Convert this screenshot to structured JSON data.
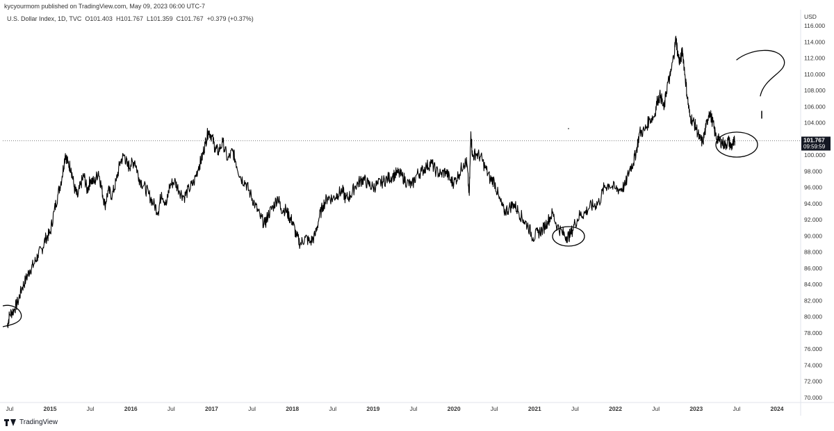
{
  "header": {
    "published_by": "kycyourmom published on TradingView.com, May 09, 2023 06:00 UTC-7"
  },
  "legend": {
    "symbol": "U.S. Dollar Index, 1D, TVC",
    "open_label": "O",
    "open": "101.403",
    "high_label": "H",
    "high": "101.767",
    "low_label": "L",
    "low": "101.359",
    "close_label": "C",
    "close": "101.767",
    "change": "+0.379 (+0.37%)"
  },
  "price_axis": {
    "unit": "USD",
    "last_price": "101.767",
    "countdown": "09:59:59"
  },
  "footer": {
    "brand": "TradingView"
  },
  "chart_data": {
    "type": "line",
    "title": "U.S. Dollar Index, 1D, TVC",
    "xlabel": "",
    "ylabel": "USD",
    "ylim": [
      70,
      116
    ],
    "xlim": [
      2014.5,
      2024.25
    ],
    "grid": false,
    "y_ticks": [
      "70.000",
      "72.000",
      "74.000",
      "76.000",
      "78.000",
      "80.000",
      "82.000",
      "84.000",
      "86.000",
      "88.000",
      "90.000",
      "92.000",
      "94.000",
      "96.000",
      "98.000",
      "100.000",
      "102.000",
      "104.000",
      "106.000",
      "108.000",
      "110.000",
      "112.000",
      "114.000",
      "116.000"
    ],
    "x_ticks": [
      {
        "label": "Jul",
        "x": 2014.5
      },
      {
        "label": "2015",
        "x": 2015.0,
        "year": true
      },
      {
        "label": "Jul",
        "x": 2015.5
      },
      {
        "label": "2016",
        "x": 2016.0,
        "year": true
      },
      {
        "label": "Jul",
        "x": 2016.5
      },
      {
        "label": "2017",
        "x": 2017.0,
        "year": true
      },
      {
        "label": "Jul",
        "x": 2017.5
      },
      {
        "label": "2018",
        "x": 2018.0,
        "year": true
      },
      {
        "label": "Jul",
        "x": 2018.5
      },
      {
        "label": "2019",
        "x": 2019.0,
        "year": true
      },
      {
        "label": "Jul",
        "x": 2019.5
      },
      {
        "label": "2020",
        "x": 2020.0,
        "year": true
      },
      {
        "label": "Jul",
        "x": 2020.5
      },
      {
        "label": "2021",
        "x": 2021.0,
        "year": true
      },
      {
        "label": "Jul",
        "x": 2021.5
      },
      {
        "label": "2022",
        "x": 2022.0,
        "year": true
      },
      {
        "label": "Jul",
        "x": 2022.5
      },
      {
        "label": "2023",
        "x": 2023.0,
        "year": true
      },
      {
        "label": "Jul",
        "x": 2023.5
      },
      {
        "label": "2024",
        "x": 2024.0,
        "year": true
      }
    ],
    "last_value": 101.767,
    "series": [
      {
        "color": "#000000",
        "points": [
          [
            2014.47,
            78.8
          ],
          [
            2014.5,
            80.3
          ],
          [
            2014.55,
            80.8
          ],
          [
            2014.6,
            81.8
          ],
          [
            2014.65,
            83.5
          ],
          [
            2014.7,
            84.6
          ],
          [
            2014.75,
            85.8
          ],
          [
            2014.8,
            86.5
          ],
          [
            2014.85,
            87.6
          ],
          [
            2014.9,
            88.4
          ],
          [
            2014.95,
            89.8
          ],
          [
            2015.0,
            90.3
          ],
          [
            2015.05,
            93.0
          ],
          [
            2015.1,
            95.2
          ],
          [
            2015.15,
            97.4
          ],
          [
            2015.19,
            100.2
          ],
          [
            2015.22,
            99.0
          ],
          [
            2015.26,
            98.4
          ],
          [
            2015.3,
            96.0
          ],
          [
            2015.34,
            94.8
          ],
          [
            2015.38,
            96.4
          ],
          [
            2015.42,
            97.5
          ],
          [
            2015.46,
            95.6
          ],
          [
            2015.5,
            97.0
          ],
          [
            2015.55,
            96.6
          ],
          [
            2015.6,
            98.0
          ],
          [
            2015.64,
            95.8
          ],
          [
            2015.68,
            93.8
          ],
          [
            2015.72,
            95.6
          ],
          [
            2015.77,
            95.0
          ],
          [
            2015.82,
            96.8
          ],
          [
            2015.87,
            99.2
          ],
          [
            2015.92,
            100.0
          ],
          [
            2015.96,
            98.6
          ],
          [
            2016.0,
            98.8
          ],
          [
            2016.05,
            99.3
          ],
          [
            2016.1,
            97.2
          ],
          [
            2016.16,
            96.2
          ],
          [
            2016.22,
            95.2
          ],
          [
            2016.28,
            94.0
          ],
          [
            2016.34,
            93.0
          ],
          [
            2016.38,
            95.4
          ],
          [
            2016.44,
            93.8
          ],
          [
            2016.48,
            96.2
          ],
          [
            2016.54,
            96.8
          ],
          [
            2016.6,
            95.6
          ],
          [
            2016.66,
            94.8
          ],
          [
            2016.72,
            95.8
          ],
          [
            2016.78,
            96.6
          ],
          [
            2016.84,
            98.6
          ],
          [
            2016.88,
            99.6
          ],
          [
            2016.92,
            101.4
          ],
          [
            2016.96,
            103.0
          ],
          [
            2017.0,
            102.4
          ],
          [
            2017.04,
            101.0
          ],
          [
            2017.08,
            100.4
          ],
          [
            2017.14,
            101.6
          ],
          [
            2017.2,
            99.4
          ],
          [
            2017.26,
            100.5
          ],
          [
            2017.3,
            99.2
          ],
          [
            2017.36,
            97.2
          ],
          [
            2017.42,
            96.6
          ],
          [
            2017.48,
            95.2
          ],
          [
            2017.54,
            93.8
          ],
          [
            2017.6,
            92.4
          ],
          [
            2017.66,
            91.4
          ],
          [
            2017.7,
            92.6
          ],
          [
            2017.76,
            93.6
          ],
          [
            2017.82,
            94.8
          ],
          [
            2017.86,
            93.4
          ],
          [
            2017.92,
            93.2
          ],
          [
            2017.96,
            92.4
          ],
          [
            2018.0,
            91.8
          ],
          [
            2018.05,
            90.0
          ],
          [
            2018.1,
            89.0
          ],
          [
            2018.16,
            89.8
          ],
          [
            2018.22,
            89.2
          ],
          [
            2018.28,
            90.0
          ],
          [
            2018.33,
            92.2
          ],
          [
            2018.38,
            93.8
          ],
          [
            2018.44,
            94.8
          ],
          [
            2018.5,
            94.6
          ],
          [
            2018.56,
            95.2
          ],
          [
            2018.62,
            95.6
          ],
          [
            2018.66,
            94.6
          ],
          [
            2018.72,
            95.0
          ],
          [
            2018.78,
            96.2
          ],
          [
            2018.84,
            96.8
          ],
          [
            2018.88,
            97.0
          ],
          [
            2018.94,
            96.4
          ],
          [
            2019.0,
            96.0
          ],
          [
            2019.06,
            96.4
          ],
          [
            2019.12,
            96.7
          ],
          [
            2019.18,
            97.1
          ],
          [
            2019.24,
            97.4
          ],
          [
            2019.3,
            97.8
          ],
          [
            2019.36,
            97.4
          ],
          [
            2019.42,
            96.6
          ],
          [
            2019.48,
            96.2
          ],
          [
            2019.54,
            97.6
          ],
          [
            2019.6,
            98.0
          ],
          [
            2019.66,
            98.6
          ],
          [
            2019.72,
            99.0
          ],
          [
            2019.78,
            98.0
          ],
          [
            2019.84,
            97.6
          ],
          [
            2019.9,
            98.0
          ],
          [
            2019.96,
            96.8
          ],
          [
            2020.0,
            96.6
          ],
          [
            2020.06,
            97.6
          ],
          [
            2020.12,
            99.0
          ],
          [
            2020.16,
            99.0
          ],
          [
            2020.19,
            95.0
          ],
          [
            2020.21,
            102.9
          ],
          [
            2020.23,
            99.8
          ],
          [
            2020.27,
            100.2
          ],
          [
            2020.33,
            99.8
          ],
          [
            2020.39,
            98.4
          ],
          [
            2020.45,
            97.0
          ],
          [
            2020.5,
            96.8
          ],
          [
            2020.56,
            94.6
          ],
          [
            2020.62,
            93.0
          ],
          [
            2020.68,
            93.4
          ],
          [
            2020.74,
            94.0
          ],
          [
            2020.8,
            93.0
          ],
          [
            2020.86,
            92.0
          ],
          [
            2020.92,
            91.2
          ],
          [
            2020.98,
            89.8
          ],
          [
            2021.04,
            90.4
          ],
          [
            2021.1,
            90.8
          ],
          [
            2021.16,
            91.8
          ],
          [
            2021.22,
            92.8
          ],
          [
            2021.28,
            91.2
          ],
          [
            2021.34,
            90.4
          ],
          [
            2021.4,
            89.9
          ],
          [
            2021.44,
            90.1
          ],
          [
            2021.5,
            91.6
          ],
          [
            2021.56,
            92.6
          ],
          [
            2021.62,
            92.8
          ],
          [
            2021.68,
            93.6
          ],
          [
            2021.74,
            93.8
          ],
          [
            2021.8,
            94.2
          ],
          [
            2021.86,
            96.0
          ],
          [
            2021.92,
            96.4
          ],
          [
            2022.0,
            95.8
          ],
          [
            2022.06,
            95.8
          ],
          [
            2022.12,
            96.2
          ],
          [
            2022.18,
            98.4
          ],
          [
            2022.22,
            99.0
          ],
          [
            2022.26,
            100.6
          ],
          [
            2022.3,
            102.8
          ],
          [
            2022.36,
            103.0
          ],
          [
            2022.42,
            104.4
          ],
          [
            2022.48,
            104.8
          ],
          [
            2022.52,
            106.8
          ],
          [
            2022.56,
            107.4
          ],
          [
            2022.6,
            105.6
          ],
          [
            2022.64,
            108.6
          ],
          [
            2022.68,
            109.8
          ],
          [
            2022.72,
            112.2
          ],
          [
            2022.75,
            114.5
          ],
          [
            2022.77,
            112.6
          ],
          [
            2022.8,
            111.4
          ],
          [
            2022.83,
            113.0
          ],
          [
            2022.86,
            110.0
          ],
          [
            2022.89,
            107.2
          ],
          [
            2022.92,
            104.8
          ],
          [
            2022.96,
            104.2
          ],
          [
            2023.0,
            103.4
          ],
          [
            2023.04,
            102.0
          ],
          [
            2023.08,
            101.6
          ],
          [
            2023.12,
            103.4
          ],
          [
            2023.16,
            105.4
          ],
          [
            2023.2,
            104.2
          ],
          [
            2023.24,
            102.4
          ],
          [
            2023.28,
            101.8
          ],
          [
            2023.32,
            101.6
          ],
          [
            2023.36,
            101.2
          ],
          [
            2023.4,
            101.8
          ],
          [
            2023.43,
            101.0
          ],
          [
            2023.46,
            101.4
          ],
          [
            2023.48,
            101.767
          ]
        ]
      }
    ]
  }
}
